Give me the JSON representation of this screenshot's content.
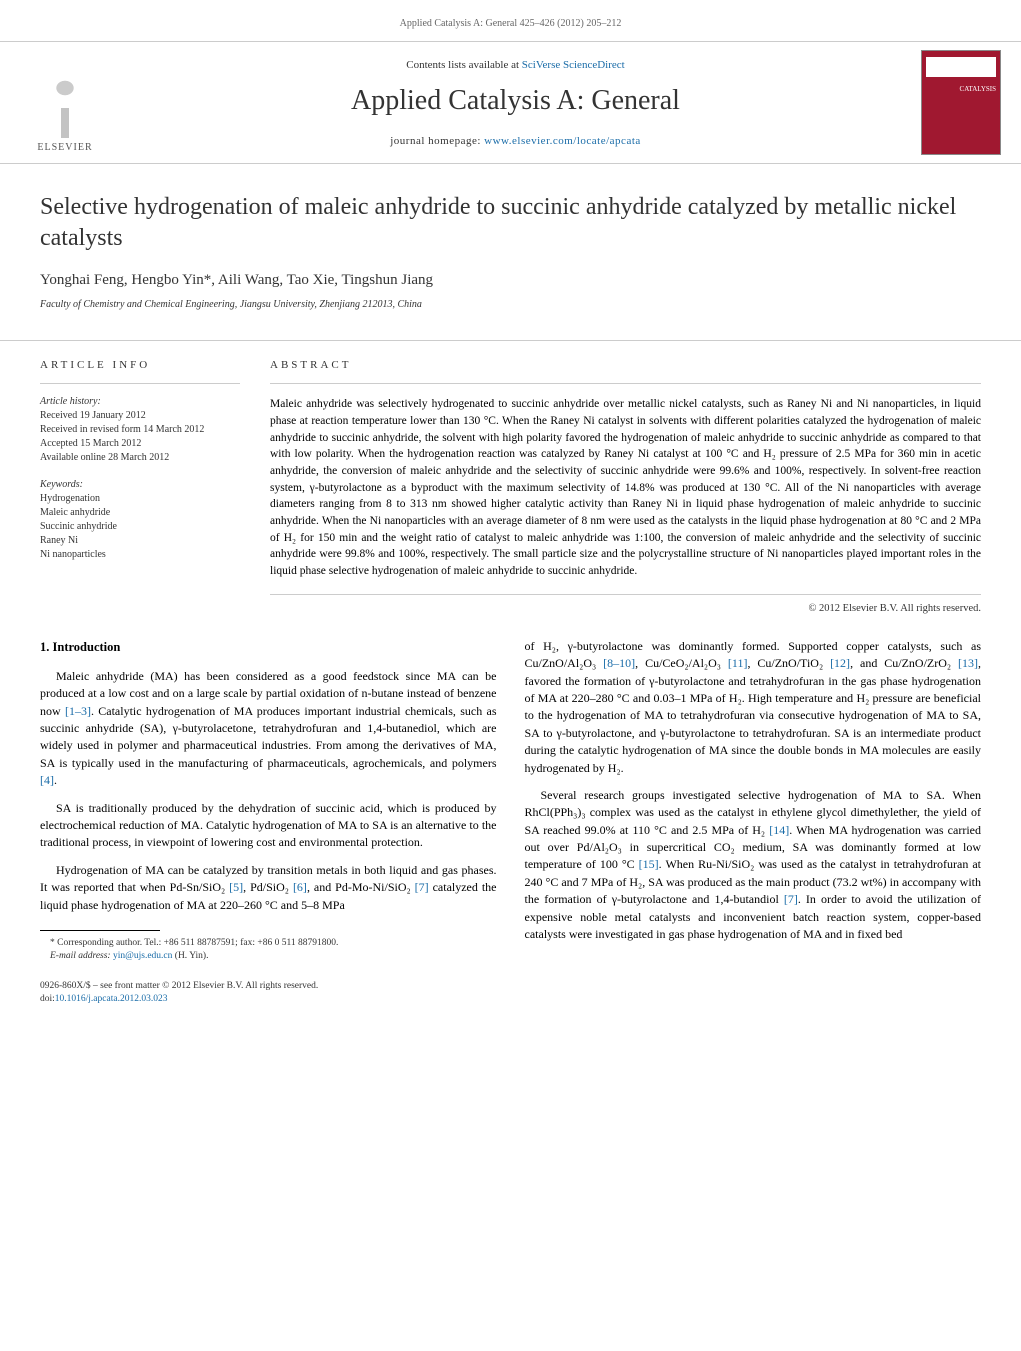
{
  "header": {
    "running_head_journal": "Applied Catalysis A: General",
    "running_head_pages": "425–426 (2012) 205–212",
    "contents_prefix": "Contents lists available at",
    "contents_link": "SciVerse ScienceDirect",
    "journal_name": "Applied Catalysis A: General",
    "homepage_prefix": "journal homepage:",
    "homepage_url": "www.elsevier.com/locate/apcata",
    "publisher_logo_text": "ELSEVIER",
    "cover_text": "CATALYSIS"
  },
  "article": {
    "title": "Selective hydrogenation of maleic anhydride to succinic anhydride catalyzed by metallic nickel catalysts",
    "authors": "Yonghai Feng, Hengbo Yin*, Aili Wang, Tao Xie, Tingshun Jiang",
    "affiliation": "Faculty of Chemistry and Chemical Engineering, Jiangsu University, Zhenjiang 212013, China"
  },
  "info": {
    "heading": "article info",
    "history_label": "Article history:",
    "history": [
      "Received 19 January 2012",
      "Received in revised form 14 March 2012",
      "Accepted 15 March 2012",
      "Available online 28 March 2012"
    ],
    "keywords_label": "Keywords:",
    "keywords": [
      "Hydrogenation",
      "Maleic anhydride",
      "Succinic anhydride",
      "Raney Ni",
      "Ni nanoparticles"
    ]
  },
  "abstract": {
    "heading": "abstract",
    "text": "Maleic anhydride was selectively hydrogenated to succinic anhydride over metallic nickel catalysts, such as Raney Ni and Ni nanoparticles, in liquid phase at reaction temperature lower than 130 °C. When the Raney Ni catalyst in solvents with different polarities catalyzed the hydrogenation of maleic anhydride to succinic anhydride, the solvent with high polarity favored the hydrogenation of maleic anhydride to succinic anhydride as compared to that with low polarity. When the hydrogenation reaction was catalyzed by Raney Ni catalyst at 100 °C and H₂ pressure of 2.5 MPa for 360 min in acetic anhydride, the conversion of maleic anhydride and the selectivity of succinic anhydride were 99.6% and 100%, respectively. In solvent-free reaction system, γ-butyrolactone as a byproduct with the maximum selectivity of 14.8% was produced at 130 °C. All of the Ni nanoparticles with average diameters ranging from 8 to 313 nm showed higher catalytic activity than Raney Ni in liquid phase hydrogenation of maleic anhydride to succinic anhydride. When the Ni nanoparticles with an average diameter of 8 nm were used as the catalysts in the liquid phase hydrogenation at 80 °C and 2 MPa of H₂ for 150 min and the weight ratio of catalyst to maleic anhydride was 1:100, the conversion of maleic anhydride and the selectivity of succinic anhydride were 99.8% and 100%, respectively. The small particle size and the polycrystalline structure of Ni nanoparticles played important roles in the liquid phase selective hydrogenation of maleic anhydride to succinic anhydride.",
    "copyright": "© 2012 Elsevier B.V. All rights reserved."
  },
  "body": {
    "section_heading": "1. Introduction",
    "col1": {
      "p1_a": "Maleic anhydride (MA) has been considered as a good feedstock since MA can be produced at a low cost and on a large scale by partial oxidation of n-butane instead of benzene now ",
      "p1_ref1": "[1–3]",
      "p1_b": ". Catalytic hydrogenation of MA produces important industrial chemicals, such as succinic anhydride (SA), γ-butyrolacetone, tetrahydrofuran and 1,4-butanediol, which are widely used in polymer and pharmaceutical industries. From among the derivatives of MA, SA is typically used in the manufacturing of pharmaceuticals, agrochemicals, and polymers ",
      "p1_ref2": "[4]",
      "p1_c": ".",
      "p2": "SA is traditionally produced by the dehydration of succinic acid, which is produced by electrochemical reduction of MA. Catalytic hydrogenation of MA to SA is an alternative to the traditional process, in viewpoint of lowering cost and environmental protection.",
      "p3_a": "Hydrogenation of MA can be catalyzed by transition metals in both liquid and gas phases. It was reported that when Pd-Sn/SiO₂ ",
      "p3_ref1": "[5]",
      "p3_b": ", Pd/SiO₂ ",
      "p3_ref2": "[6]",
      "p3_c": ", and Pd-Mo-Ni/SiO₂ ",
      "p3_ref3": "[7]",
      "p3_d": " catalyzed the liquid phase hydrogenation of MA at 220–260 °C and 5–8 MPa"
    },
    "col2": {
      "p1_a": "of H₂, γ-butyrolactone was dominantly formed. Supported copper catalysts, such as Cu/ZnO/Al₂O₃ ",
      "p1_ref1": "[8–10]",
      "p1_b": ", Cu/CeO₂/Al₂O₃ ",
      "p1_ref2": "[11]",
      "p1_c": ", Cu/ZnO/TiO₂ ",
      "p1_ref3": "[12]",
      "p1_d": ", and Cu/ZnO/ZrO₂ ",
      "p1_ref4": "[13]",
      "p1_e": ", favored the formation of γ-butyrolactone and tetrahydrofuran in the gas phase hydrogenation of MA at 220–280 °C and 0.03–1 MPa of H₂. High temperature and H₂ pressure are beneficial to the hydrogenation of MA to tetrahydrofuran via consecutive hydrogenation of MA to SA, SA to γ-butyrolactone, and γ-butyrolactone to tetrahydrofuran. SA is an intermediate product during the catalytic hydrogenation of MA since the double bonds in MA molecules are easily hydrogenated by H₂.",
      "p2_a": "Several research groups investigated selective hydrogenation of MA to SA. When RhCl(PPh₃)₃ complex was used as the catalyst in ethylene glycol dimethylether, the yield of SA reached 99.0% at 110 °C and 2.5 MPa of H₂ ",
      "p2_ref1": "[14]",
      "p2_b": ". When MA hydrogenation was carried out over Pd/Al₂O₃ in supercritical CO₂ medium, SA was dominantly formed at low temperature of 100 °C ",
      "p2_ref2": "[15]",
      "p2_c": ". When Ru-Ni/SiO₂ was used as the catalyst in tetrahydrofuran at 240 °C and 7 MPa of H₂, SA was produced as the main product (73.2 wt%) in accompany with the formation of γ-butyrolactone and 1,4-butandiol ",
      "p2_ref3": "[7]",
      "p2_d": ". In order to avoid the utilization of expensive noble metal catalysts and inconvenient batch reaction system, copper-based catalysts were investigated in gas phase hydrogenation of MA and in fixed bed"
    }
  },
  "footnote": {
    "corr_label": "* Corresponding author. Tel.: +86 511 88787591; fax: +86 0 511 88791800.",
    "email_label": "E-mail address:",
    "email": "yin@ujs.edu.cn",
    "email_name": "(H. Yin)."
  },
  "footer": {
    "line1": "0926-860X/$ – see front matter © 2012 Elsevier B.V. All rights reserved.",
    "doi_label": "doi:",
    "doi": "10.1016/j.apcata.2012.03.023"
  },
  "colors": {
    "link": "#1a6ca8",
    "cover_bg": "#a01830",
    "border": "#cccccc",
    "text": "#000000",
    "muted": "#333333"
  },
  "typography": {
    "title_fontsize": 24,
    "journal_name_fontsize": 28,
    "body_fontsize": 12,
    "abstract_fontsize": 11.5,
    "footnote_fontsize": 9.5
  }
}
